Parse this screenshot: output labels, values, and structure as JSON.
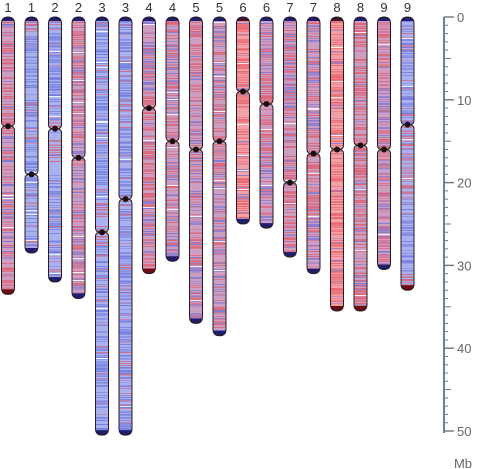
{
  "colors": {
    "red_band": "#e8414a",
    "blue_band": "#5562d8",
    "red_base": "#f2a1a6",
    "blue_base": "#a9b2ee",
    "mixed_base": "#cc9fc2",
    "outline": "#2a1a22",
    "cap_blue": "#1e1e6e",
    "cap_dark": "#3a1530",
    "cap_red": "#6a0e12",
    "axis": "#6f7f8f"
  },
  "axis": {
    "unit": "Mb",
    "max": 50,
    "ticks": [
      {
        "value": 0,
        "label": "0"
      },
      {
        "value": 10,
        "label": "10"
      },
      {
        "value": 20,
        "label": "20"
      },
      {
        "value": 30,
        "label": "30"
      },
      {
        "value": 40,
        "label": "40"
      },
      {
        "value": 50,
        "label": "50"
      }
    ]
  },
  "chromosomes": [
    {
      "label": "1",
      "length": 33.5,
      "centromere": 13.2,
      "base": "mixed",
      "red_top": [
        0,
        14
      ],
      "red_tail": 4
    },
    {
      "label": "1",
      "length": 28.5,
      "centromere": 19.0,
      "base": "blue",
      "red_top": [
        0,
        2
      ],
      "red_tail": 0
    },
    {
      "label": "2",
      "length": 32.0,
      "centromere": 13.5,
      "base": "blue",
      "red_top": [
        12,
        17
      ],
      "red_tail": 0
    },
    {
      "label": "2",
      "length": 34.0,
      "centromere": 17.0,
      "base": "mixed",
      "red_top": [
        0,
        3
      ],
      "red_tail": 0
    },
    {
      "label": "3",
      "length": 50.5,
      "centromere": 26.0,
      "base": "blue",
      "red_top": [
        22,
        27
      ],
      "red_tail": 0
    },
    {
      "label": "3",
      "length": 50.5,
      "centromere": 22.0,
      "base": "blue",
      "red_top": [
        0,
        0
      ],
      "red_tail": 0
    },
    {
      "label": "4",
      "length": 31.0,
      "centromere": 11.0,
      "base": "mixed",
      "red_top": [
        9,
        22
      ],
      "red_tail": 2.5
    },
    {
      "label": "4",
      "length": 29.5,
      "centromere": 15.0,
      "base": "mixed",
      "red_top": [
        12,
        17
      ],
      "red_tail": 0
    },
    {
      "label": "5",
      "length": 37.0,
      "centromere": 16.0,
      "base": "mixed",
      "red_top": [
        0,
        10
      ],
      "red_tail": 0
    },
    {
      "label": "5",
      "length": 38.5,
      "centromere": 15.0,
      "base": "mixed",
      "red_top": [
        10,
        20
      ],
      "red_tail": 0
    },
    {
      "label": "6",
      "length": 25.0,
      "centromere": 9.0,
      "base": "red",
      "red_top": [
        0,
        13
      ],
      "red_tail": 0
    },
    {
      "label": "6",
      "length": 25.5,
      "centromere": 10.5,
      "base": "mixed",
      "red_top": [
        7,
        14
      ],
      "red_tail": 0
    },
    {
      "label": "7",
      "length": 29.0,
      "centromere": 20.0,
      "base": "mixed",
      "red_top": [
        16,
        29
      ],
      "red_tail": 0
    },
    {
      "label": "7",
      "length": 31.0,
      "centromere": 16.5,
      "base": "mixed",
      "red_top": [
        13,
        24
      ],
      "red_tail": 0
    },
    {
      "label": "8",
      "length": 35.5,
      "centromere": 16.0,
      "base": "red",
      "red_top": [
        0,
        36
      ],
      "red_tail": 2.5
    },
    {
      "label": "8",
      "length": 35.5,
      "centromere": 15.5,
      "base": "mixed",
      "red_top": [
        0,
        25
      ],
      "red_tail": 2.5
    },
    {
      "label": "9",
      "length": 30.5,
      "centromere": 16.0,
      "base": "mixed",
      "red_top": [
        0,
        8
      ],
      "red_tail": 0
    },
    {
      "label": "9",
      "length": 33.0,
      "centromere": 13.0,
      "base": "blue",
      "red_top": [
        13,
        22
      ],
      "red_tail": 2
    }
  ]
}
